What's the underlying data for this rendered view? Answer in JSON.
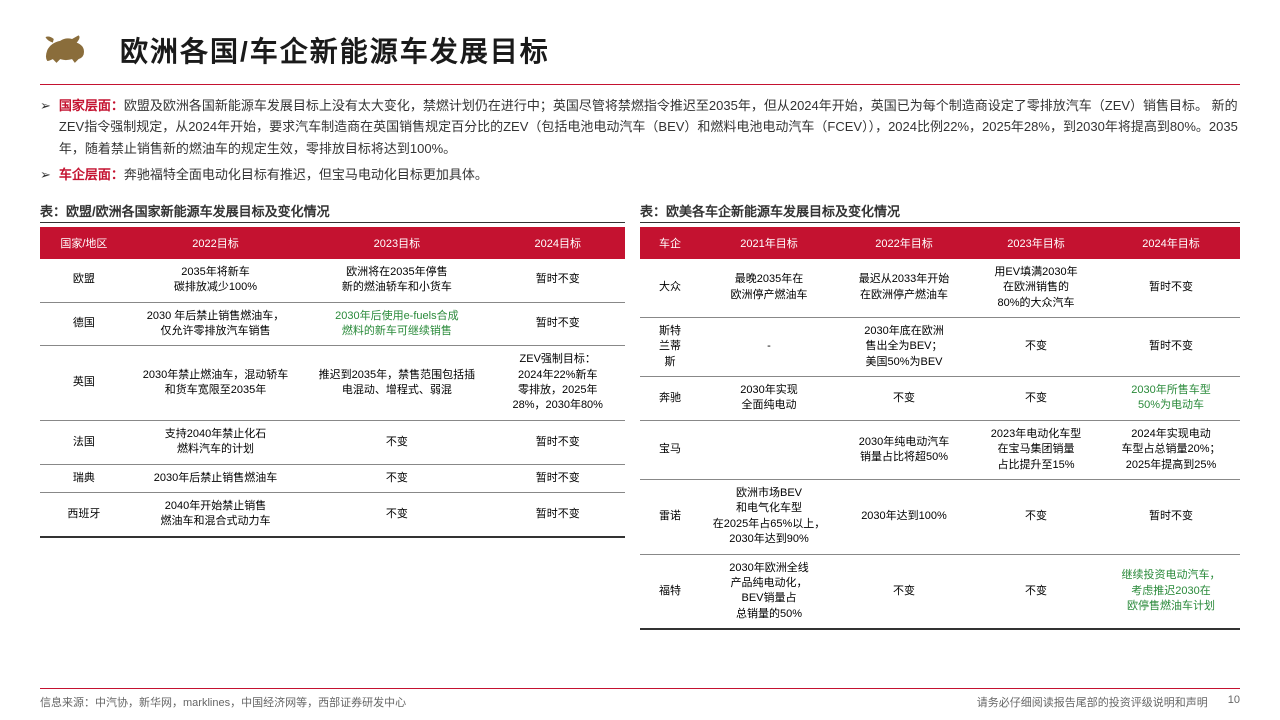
{
  "title": "欧洲各国/车企新能源车发展目标",
  "bullets": [
    {
      "label": "国家层面：",
      "text": "欧盟及欧洲各国新能源车发展目标上没有太大变化，禁燃计划仍在进行中；英国尽管将禁燃指令推迟至2035年，但从2024年开始，英国已为每个制造商设定了零排放汽车（ZEV）销售目标。 新的ZEV指令强制规定，从2024年开始，要求汽车制造商在英国销售规定百分比的ZEV（包括电池电动汽车（BEV）和燃料电池电动汽车（FCEV）），2024比例22%，2025年28%，到2030年将提高到80%。2035 年，随着禁止销售新的燃油车的规定生效，零排放目标将达到100%。"
    },
    {
      "label": "车企层面：",
      "text": "奔驰福特全面电动化目标有推迟，但宝马电动化目标更加具体。"
    }
  ],
  "leftTable": {
    "caption": "表：欧盟/欧洲各国家新能源车发展目标及变化情况",
    "cols": [
      "国家/地区",
      "2022目标",
      "2023目标",
      "2024目标"
    ],
    "widths": [
      "15%",
      "30%",
      "32%",
      "23%"
    ],
    "rows": [
      [
        "欧盟",
        "2035年将新车\n碳排放减少100%",
        "欧洲将在2035年停售\n新的燃油轿车和小货车",
        "暂时不变"
      ],
      [
        "德国",
        "2030 年后禁止销售燃油车，\n仅允许零排放汽车销售",
        "2030年后使用e-fuels合成\n燃料的新车可继续销售",
        "暂时不变"
      ],
      [
        "英国",
        "2030年禁止燃油车，混动轿车\n和货车宽限至2035年",
        "推迟到2035年，禁售范围包括插\n电混动、增程式、弱混",
        "ZEV强制目标：\n2024年22%新车\n零排放，2025年\n28%，2030年80%"
      ],
      [
        "法国",
        "支持2040年禁止化石\n燃料汽车的计划",
        "不变",
        "暂时不变"
      ],
      [
        "瑞典",
        "2030年后禁止销售燃油车",
        "不变",
        "暂时不变"
      ],
      [
        "西班牙",
        "2040年开始禁止销售\n燃油车和混合式动力车",
        "不变",
        "暂时不变"
      ]
    ],
    "highlight": [
      [
        1,
        2
      ]
    ]
  },
  "rightTable": {
    "caption": "表：欧美各车企新能源车发展目标及变化情况",
    "cols": [
      "车企",
      "2021年目标",
      "2022年目标",
      "2023年目标",
      "2024年目标"
    ],
    "widths": [
      "10%",
      "23%",
      "22%",
      "22%",
      "23%"
    ],
    "rows": [
      [
        "大众",
        "最晚2035年在\n欧洲停产燃油车",
        "最迟从2033年开始\n在欧洲停产燃油车",
        "用EV填满2030年\n在欧洲销售的\n80%的大众汽车",
        "暂时不变"
      ],
      [
        "斯特\n兰蒂\n斯",
        "-",
        "2030年底在欧洲\n售出全为BEV；\n美国50%为BEV",
        "不变",
        "暂时不变"
      ],
      [
        "奔驰",
        "2030年实现\n全面纯电动",
        "不变",
        "不变",
        "2030年所售车型\n50%为电动车"
      ],
      [
        "宝马",
        "",
        "2030年纯电动汽车\n销量占比将超50%",
        "2023年电动化车型\n在宝马集团销量\n占比提升至15%",
        "2024年实现电动\n车型占总销量20%；\n2025年提高到25%"
      ],
      [
        "雷诺",
        "欧洲市场BEV\n和电气化车型\n在2025年占65%以上，\n2030年达到90%",
        "2030年达到100%",
        "不变",
        "暂时不变"
      ],
      [
        "福特",
        "2030年欧洲全线\n产品纯电动化，\nBEV销量占\n总销量的50%",
        "不变",
        "不变",
        "继续投资电动汽车，\n考虑推迟2030在\n欧停售燃油车计划"
      ]
    ],
    "highlight": [
      [
        2,
        4
      ],
      [
        5,
        4
      ]
    ]
  },
  "footer": {
    "source": "信息来源：中汽协，新华网，marklines，中国经济网等，西部证券研发中心",
    "disclaimer": "请务必仔细阅读报告尾部的投资评级说明和声明",
    "page": "10"
  }
}
